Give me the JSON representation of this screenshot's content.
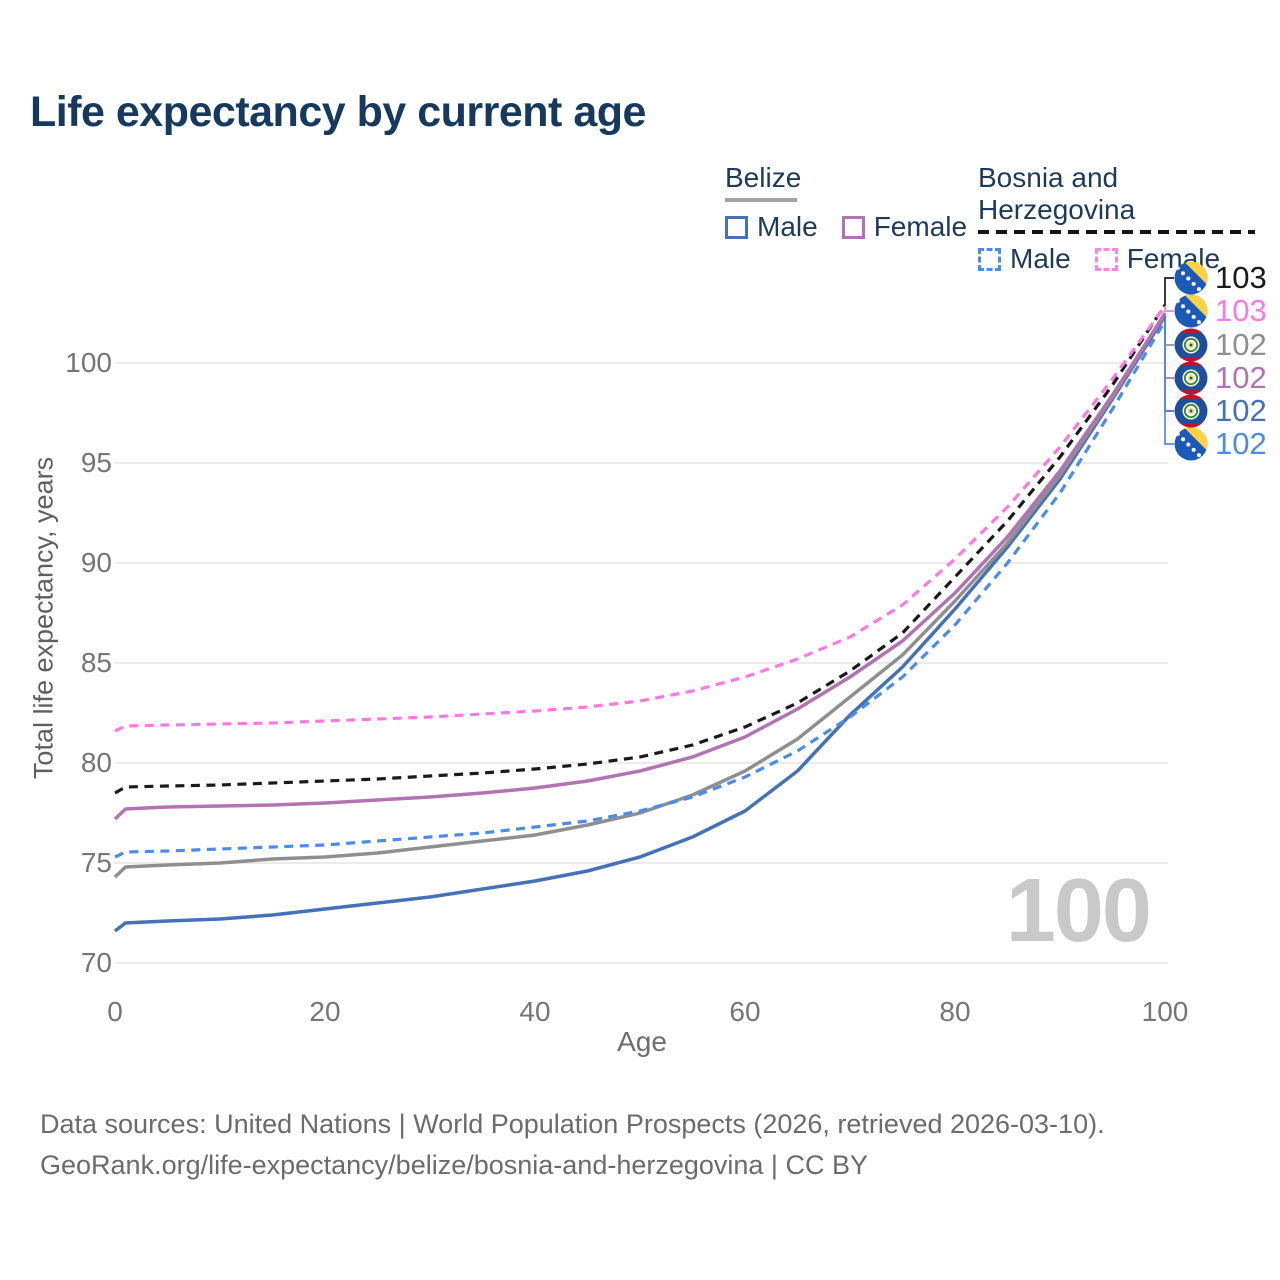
{
  "title": "Life expectancy by current age",
  "legend": {
    "groups": [
      {
        "label": "Belize",
        "line_style": "solid",
        "underline_color": "#a3a3a3",
        "items": [
          {
            "label": "Male",
            "color": "#4472b8",
            "dashed": false
          },
          {
            "label": "Female",
            "color": "#b273b2",
            "dashed": false
          }
        ]
      },
      {
        "label": "Bosnia and Herzegovina",
        "line_style": "dashed",
        "underline_color": "#141414",
        "items": [
          {
            "label": "Male",
            "color": "#4b8bef",
            "dashed": true
          },
          {
            "label": "Female",
            "color": "#ff85e3",
            "dashed": true
          }
        ]
      }
    ]
  },
  "chart_data": {
    "type": "line",
    "title": "Life expectancy by current age",
    "xlabel": "Age",
    "ylabel": "Total life expectancy, years",
    "xlim": [
      0,
      100
    ],
    "ylim": [
      68.5,
      104
    ],
    "xticks": [
      0,
      20,
      40,
      60,
      80,
      100
    ],
    "yticks": [
      70,
      75,
      80,
      85,
      90,
      95,
      100
    ],
    "grid": "horizontal",
    "gridline_color": "#ebebeb",
    "watermark": "100",
    "x": [
      0,
      1,
      5,
      10,
      15,
      20,
      25,
      30,
      35,
      40,
      45,
      50,
      55,
      60,
      65,
      70,
      75,
      80,
      85,
      90,
      95,
      100
    ],
    "series": [
      {
        "key": "belize_male",
        "name": "Belize Male",
        "country": "Belize",
        "sex": "Male",
        "color": "#4472b8",
        "line_style": "solid",
        "values": [
          71.6,
          72.0,
          72.1,
          72.2,
          72.4,
          72.7,
          73.0,
          73.3,
          73.7,
          74.1,
          74.6,
          75.3,
          76.3,
          77.6,
          79.6,
          82.4,
          84.8,
          87.7,
          90.8,
          94.2,
          98.2,
          102.35
        ]
      },
      {
        "key": "belize_total",
        "name": "Belize Total",
        "country": "Belize",
        "sex": "Total",
        "color": "#8f8f8f",
        "line_style": "solid",
        "values": [
          74.3,
          74.8,
          74.9,
          75.0,
          75.2,
          75.3,
          75.5,
          75.8,
          76.1,
          76.4,
          76.9,
          77.5,
          78.4,
          79.6,
          81.2,
          83.3,
          85.4,
          88.1,
          91.0,
          94.4,
          98.3,
          102.5
        ]
      },
      {
        "key": "belize_female",
        "name": "Belize Female",
        "country": "Belize",
        "sex": "Female",
        "color": "#b273b2",
        "line_style": "solid",
        "values": [
          77.2,
          77.7,
          77.8,
          77.85,
          77.9,
          78.0,
          78.15,
          78.3,
          78.5,
          78.75,
          79.1,
          79.6,
          80.3,
          81.3,
          82.7,
          84.3,
          86.1,
          88.5,
          91.3,
          94.6,
          98.4,
          102.45
        ]
      },
      {
        "key": "bosnia_male",
        "name": "Bosnia and Herzegovina Male",
        "country": "Bosnia and Herzegovina",
        "sex": "Male",
        "color": "#4b8bef",
        "line_style": "dashed",
        "values": [
          75.3,
          75.55,
          75.6,
          75.7,
          75.8,
          75.9,
          76.1,
          76.3,
          76.5,
          76.8,
          77.1,
          77.6,
          78.3,
          79.3,
          80.6,
          82.3,
          84.3,
          86.9,
          90.0,
          93.5,
          97.7,
          102.1
        ]
      },
      {
        "key": "bosnia_total",
        "name": "Bosnia and Herzegovina Total",
        "country": "Bosnia and Herzegovina",
        "sex": "Total",
        "color": "#1a1a1a",
        "line_style": "dashed",
        "values": [
          78.5,
          78.8,
          78.85,
          78.9,
          79.0,
          79.1,
          79.2,
          79.35,
          79.5,
          79.7,
          79.95,
          80.3,
          80.9,
          81.8,
          83.0,
          84.6,
          86.5,
          89.3,
          92.1,
          95.3,
          98.9,
          102.9
        ]
      },
      {
        "key": "bosnia_female",
        "name": "Bosnia and Herzegovina Female",
        "country": "Bosnia and Herzegovina",
        "sex": "Female",
        "color": "#ff77e1",
        "line_style": "dashed",
        "values": [
          81.6,
          81.85,
          81.9,
          81.95,
          82.0,
          82.1,
          82.2,
          82.3,
          82.45,
          82.6,
          82.8,
          83.1,
          83.6,
          84.3,
          85.2,
          86.3,
          87.9,
          90.2,
          92.8,
          95.8,
          99.2,
          102.85
        ]
      }
    ],
    "end_labels": [
      {
        "series": "bosnia_total",
        "text": "103",
        "flag": "bosnia"
      },
      {
        "series": "bosnia_female",
        "text": "103",
        "flag": "bosnia"
      },
      {
        "series": "belize_total",
        "text": "102",
        "flag": "belize"
      },
      {
        "series": "belize_female",
        "text": "102",
        "flag": "belize"
      },
      {
        "series": "belize_male",
        "text": "102",
        "flag": "belize"
      },
      {
        "series": "bosnia_male",
        "text": "102",
        "flag": "bosnia"
      }
    ]
  },
  "footer": {
    "line1": "Data sources: United Nations | World Population Prospects (2026, retrieved 2026-03-10).",
    "line2": "GeoRank.org/life-expectancy/belize/bosnia-and-herzegovina | CC BY"
  }
}
